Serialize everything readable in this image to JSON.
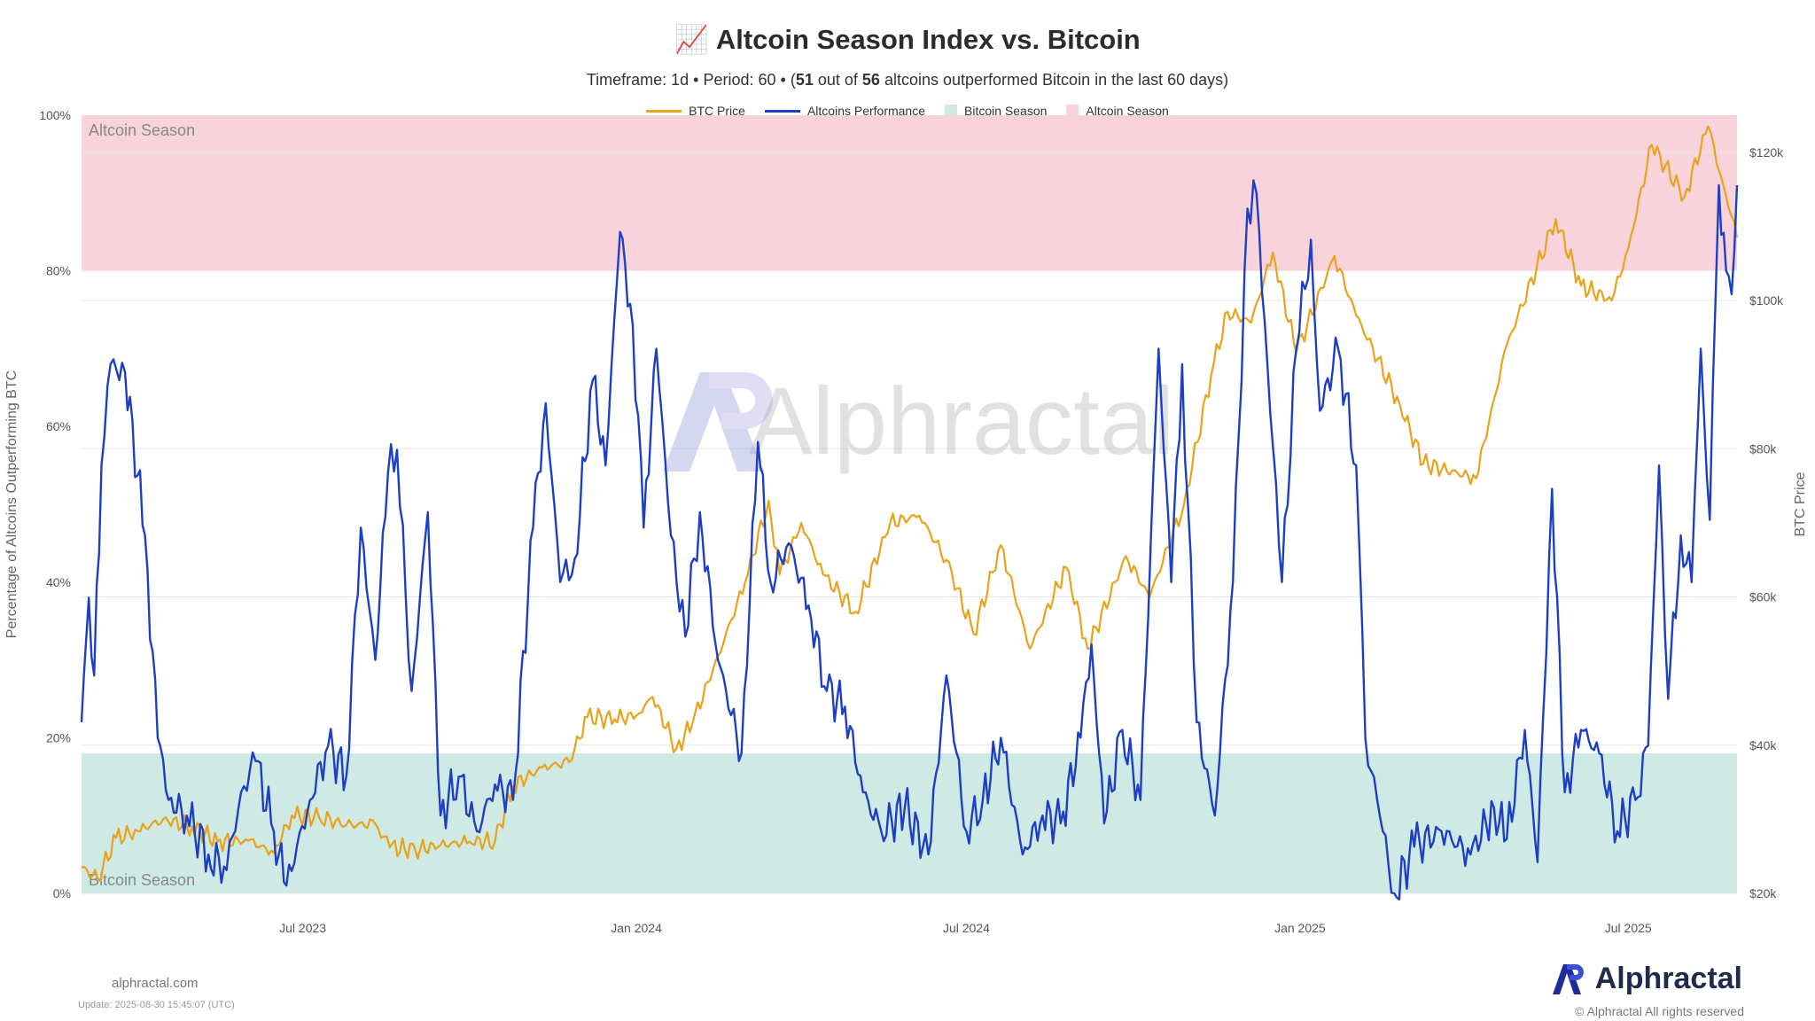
{
  "header": {
    "title_emoji": "📈",
    "title": "Altcoin Season Index vs. Bitcoin",
    "sub_prefix": "Timeframe: 1d  •  Period: 60  •  (",
    "sub_bold1": "51",
    "sub_mid1": " out of ",
    "sub_bold2": "56",
    "sub_suffix": " altcoins outperformed Bitcoin in the last 60 days)"
  },
  "legend": [
    {
      "label": "BTC Price",
      "color": "#e8a21c",
      "kind": "line"
    },
    {
      "label": "Altcoins Performance",
      "color": "#1d3fc4",
      "kind": "line"
    },
    {
      "label": "Bitcoin Season",
      "color": "#cfe9e4",
      "kind": "box"
    },
    {
      "label": "Altcoin Season",
      "color": "#f8d3db",
      "kind": "box"
    }
  ],
  "zone_labels": {
    "altcoin": "Altcoin Season",
    "bitcoin": "Bitcoin Season"
  },
  "watermark": "Alphractal",
  "footer": {
    "site": "alphractal.com",
    "update": "Update: 2025-08-30 15:45:07 (UTC)",
    "brand": "Alphractal",
    "copyright": "© Alphractal All rights reserved"
  },
  "colors": {
    "btc": "#e8a21c",
    "btc_high": "#f08a1a",
    "alt": "#1d3fc4",
    "altcoin_zone": "#f8d3db",
    "bitcoin_zone": "#cfe9e4"
  },
  "chart_data": {
    "type": "line",
    "title": "Altcoin Season Index vs. Bitcoin",
    "ylabel_left": "Percentage of Altcoins Outperforming BTC",
    "ylabel_right": "BTC Price",
    "x_range": [
      "2023-03-01",
      "2025-08-30"
    ],
    "x_ticks": [
      {
        "date": "2023-07-01",
        "label": "Jul 2023"
      },
      {
        "date": "2024-01-01",
        "label": "Jan 2024"
      },
      {
        "date": "2024-07-01",
        "label": "Jul 2024"
      },
      {
        "date": "2025-01-01",
        "label": "Jan 2025"
      },
      {
        "date": "2025-07-01",
        "label": "Jul 2025"
      }
    ],
    "y_left": {
      "min": 0,
      "max": 100,
      "ticks": [
        0,
        20,
        40,
        60,
        80,
        100
      ],
      "tick_labels": [
        "0%",
        "20%",
        "40%",
        "60%",
        "80%",
        "100%"
      ]
    },
    "y_right": {
      "min": 20000,
      "max": 125000,
      "ticks": [
        20000,
        40000,
        60000,
        80000,
        100000,
        120000
      ],
      "tick_labels": [
        "$20k",
        "$40k",
        "$60k",
        "$80k",
        "$100k",
        "$120k"
      ]
    },
    "zones": [
      {
        "name": "Altcoin Season",
        "from": 80,
        "to": 100
      },
      {
        "name": "Bitcoin Season",
        "from": 0,
        "to": 18
      }
    ],
    "series": [
      {
        "name": "BTC Price",
        "axis": "right",
        "points": [
          [
            "2023-03-01",
            23500
          ],
          [
            "2023-03-10",
            22000
          ],
          [
            "2023-03-20",
            27500
          ],
          [
            "2023-04-01",
            28400
          ],
          [
            "2023-04-15",
            30000
          ],
          [
            "2023-05-01",
            29000
          ],
          [
            "2023-05-15",
            27000
          ],
          [
            "2023-06-01",
            27100
          ],
          [
            "2023-06-15",
            25500
          ],
          [
            "2023-06-25",
            30500
          ],
          [
            "2023-07-10",
            30300
          ],
          [
            "2023-07-25",
            29200
          ],
          [
            "2023-08-10",
            29400
          ],
          [
            "2023-08-18",
            26200
          ],
          [
            "2023-09-01",
            25900
          ],
          [
            "2023-09-15",
            26500
          ],
          [
            "2023-10-01",
            27000
          ],
          [
            "2023-10-15",
            27000
          ],
          [
            "2023-10-25",
            34500
          ],
          [
            "2023-11-10",
            37000
          ],
          [
            "2023-11-25",
            37700
          ],
          [
            "2023-12-05",
            43800
          ],
          [
            "2023-12-20",
            43500
          ],
          [
            "2024-01-01",
            44000
          ],
          [
            "2024-01-10",
            46500
          ],
          [
            "2024-01-23",
            39500
          ],
          [
            "2024-02-01",
            43000
          ],
          [
            "2024-02-15",
            52000
          ],
          [
            "2024-03-01",
            62000
          ],
          [
            "2024-03-14",
            73000
          ],
          [
            "2024-03-20",
            63000
          ],
          [
            "2024-04-01",
            70000
          ],
          [
            "2024-04-13",
            63000
          ],
          [
            "2024-05-01",
            58000
          ],
          [
            "2024-05-20",
            70000
          ],
          [
            "2024-06-05",
            71000
          ],
          [
            "2024-06-20",
            65000
          ],
          [
            "2024-07-05",
            55000
          ],
          [
            "2024-07-20",
            67000
          ],
          [
            "2024-08-05",
            53000
          ],
          [
            "2024-08-25",
            64000
          ],
          [
            "2024-09-06",
            53000
          ],
          [
            "2024-09-27",
            65500
          ],
          [
            "2024-10-10",
            60000
          ],
          [
            "2024-10-29",
            72500
          ],
          [
            "2024-11-13",
            90000
          ],
          [
            "2024-11-22",
            98500
          ],
          [
            "2024-12-05",
            97000
          ],
          [
            "2024-12-17",
            106500
          ],
          [
            "2024-12-30",
            93000
          ],
          [
            "2025-01-20",
            106000
          ],
          [
            "2025-02-01",
            98000
          ],
          [
            "2025-02-25",
            86000
          ],
          [
            "2025-03-10",
            78000
          ],
          [
            "2025-04-08",
            76000
          ],
          [
            "2025-04-25",
            94000
          ],
          [
            "2025-05-22",
            111000
          ],
          [
            "2025-06-05",
            102000
          ],
          [
            "2025-06-22",
            100000
          ],
          [
            "2025-07-01",
            107000
          ],
          [
            "2025-07-14",
            121000
          ],
          [
            "2025-08-01",
            114000
          ],
          [
            "2025-08-14",
            123500
          ],
          [
            "2025-08-22",
            116000
          ],
          [
            "2025-08-30",
            108500
          ]
        ]
      },
      {
        "name": "Altcoins Performance",
        "axis": "left",
        "points": [
          [
            "2023-03-01",
            22
          ],
          [
            "2023-03-05",
            38
          ],
          [
            "2023-03-08",
            28
          ],
          [
            "2023-03-12",
            55
          ],
          [
            "2023-03-17",
            68
          ],
          [
            "2023-03-25",
            67
          ],
          [
            "2023-04-05",
            46
          ],
          [
            "2023-04-12",
            20
          ],
          [
            "2023-04-18",
            12
          ],
          [
            "2023-04-28",
            10
          ],
          [
            "2023-05-10",
            5
          ],
          [
            "2023-05-20",
            3
          ],
          [
            "2023-05-28",
            13
          ],
          [
            "2023-06-05",
            17
          ],
          [
            "2023-06-15",
            8
          ],
          [
            "2023-06-22",
            1
          ],
          [
            "2023-07-05",
            12
          ],
          [
            "2023-07-15",
            19
          ],
          [
            "2023-07-25",
            15
          ],
          [
            "2023-08-02",
            47
          ],
          [
            "2023-08-10",
            30
          ],
          [
            "2023-08-17",
            54
          ],
          [
            "2023-08-22",
            57
          ],
          [
            "2023-08-30",
            26
          ],
          [
            "2023-09-08",
            49
          ],
          [
            "2023-09-15",
            10
          ],
          [
            "2023-09-25",
            15
          ],
          [
            "2023-10-05",
            8
          ],
          [
            "2023-10-15",
            14
          ],
          [
            "2023-10-25",
            12
          ],
          [
            "2023-11-05",
            47
          ],
          [
            "2023-11-12",
            63
          ],
          [
            "2023-11-20",
            40
          ],
          [
            "2023-11-28",
            43
          ],
          [
            "2023-12-08",
            66
          ],
          [
            "2023-12-15",
            55
          ],
          [
            "2023-12-23",
            85
          ],
          [
            "2023-12-30",
            73
          ],
          [
            "2024-01-05",
            47
          ],
          [
            "2024-01-12",
            70
          ],
          [
            "2024-01-20",
            46
          ],
          [
            "2024-01-28",
            33
          ],
          [
            "2024-02-05",
            49
          ],
          [
            "2024-02-15",
            30
          ],
          [
            "2024-02-28",
            18
          ],
          [
            "2024-03-08",
            58
          ],
          [
            "2024-03-15",
            40
          ],
          [
            "2024-03-25",
            45
          ],
          [
            "2024-04-05",
            37
          ],
          [
            "2024-04-15",
            26
          ],
          [
            "2024-04-25",
            24
          ],
          [
            "2024-05-05",
            13
          ],
          [
            "2024-05-15",
            8
          ],
          [
            "2024-05-28",
            11
          ],
          [
            "2024-06-10",
            5
          ],
          [
            "2024-06-20",
            28
          ],
          [
            "2024-07-01",
            8
          ],
          [
            "2024-07-10",
            12
          ],
          [
            "2024-07-20",
            20
          ],
          [
            "2024-08-01",
            5
          ],
          [
            "2024-08-12",
            10
          ],
          [
            "2024-08-22",
            9
          ],
          [
            "2024-09-02",
            20
          ],
          [
            "2024-09-08",
            32
          ],
          [
            "2024-09-15",
            9
          ],
          [
            "2024-09-25",
            21
          ],
          [
            "2024-10-05",
            12
          ],
          [
            "2024-10-15",
            70
          ],
          [
            "2024-10-22",
            40
          ],
          [
            "2024-10-28",
            68
          ],
          [
            "2024-11-05",
            22
          ],
          [
            "2024-11-15",
            10
          ],
          [
            "2024-11-25",
            40
          ],
          [
            "2024-12-03",
            88
          ],
          [
            "2024-12-08",
            90
          ],
          [
            "2024-12-14",
            68
          ],
          [
            "2024-12-22",
            40
          ],
          [
            "2024-12-30",
            70
          ],
          [
            "2025-01-07",
            84
          ],
          [
            "2025-01-12",
            62
          ],
          [
            "2025-01-22",
            70
          ],
          [
            "2025-02-01",
            55
          ],
          [
            "2025-02-06",
            20
          ],
          [
            "2025-02-14",
            10
          ],
          [
            "2025-02-22",
            0
          ],
          [
            "2025-03-05",
            6
          ],
          [
            "2025-03-20",
            8
          ],
          [
            "2025-04-05",
            5
          ],
          [
            "2025-04-18",
            11
          ],
          [
            "2025-04-25",
            7
          ],
          [
            "2025-05-05",
            21
          ],
          [
            "2025-05-12",
            4
          ],
          [
            "2025-05-20",
            52
          ],
          [
            "2025-05-27",
            13
          ],
          [
            "2025-06-05",
            21
          ],
          [
            "2025-06-15",
            18
          ],
          [
            "2025-06-25",
            8
          ],
          [
            "2025-07-05",
            12
          ],
          [
            "2025-07-12",
            19
          ],
          [
            "2025-07-18",
            55
          ],
          [
            "2025-07-23",
            25
          ],
          [
            "2025-07-30",
            46
          ],
          [
            "2025-08-05",
            40
          ],
          [
            "2025-08-10",
            70
          ],
          [
            "2025-08-15",
            48
          ],
          [
            "2025-08-20",
            91
          ],
          [
            "2025-08-24",
            80
          ],
          [
            "2025-08-27",
            77
          ],
          [
            "2025-08-30",
            91
          ]
        ]
      }
    ]
  }
}
